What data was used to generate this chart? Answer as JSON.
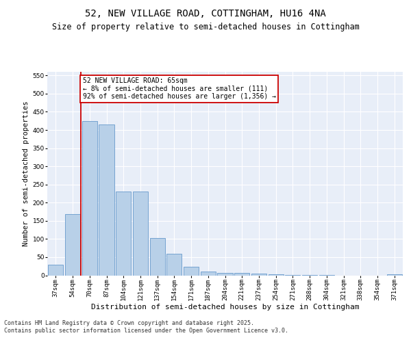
{
  "title_line1": "52, NEW VILLAGE ROAD, COTTINGHAM, HU16 4NA",
  "title_line2": "Size of property relative to semi-detached houses in Cottingham",
  "xlabel": "Distribution of semi-detached houses by size in Cottingham",
  "ylabel": "Number of semi-detached properties",
  "categories": [
    "37sqm",
    "54sqm",
    "70sqm",
    "87sqm",
    "104sqm",
    "121sqm",
    "137sqm",
    "154sqm",
    "171sqm",
    "187sqm",
    "204sqm",
    "221sqm",
    "237sqm",
    "254sqm",
    "271sqm",
    "288sqm",
    "304sqm",
    "321sqm",
    "338sqm",
    "354sqm",
    "371sqm"
  ],
  "values": [
    30,
    168,
    425,
    416,
    230,
    230,
    103,
    60,
    23,
    10,
    7,
    7,
    4,
    2,
    1,
    1,
    1,
    0,
    0,
    0,
    3
  ],
  "bar_color": "#b8d0e8",
  "bar_edge_color": "#6699cc",
  "highlight_line_color": "#cc0000",
  "annotation_text": "52 NEW VILLAGE ROAD: 65sqm\n← 8% of semi-detached houses are smaller (111)\n92% of semi-detached houses are larger (1,356) →",
  "annotation_box_color": "#ffffff",
  "annotation_box_edge_color": "#cc0000",
  "ylim": [
    0,
    560
  ],
  "yticks": [
    0,
    50,
    100,
    150,
    200,
    250,
    300,
    350,
    400,
    450,
    500,
    550
  ],
  "background_color": "#e8eef8",
  "grid_color": "#ffffff",
  "footer_text": "Contains HM Land Registry data © Crown copyright and database right 2025.\nContains public sector information licensed under the Open Government Licence v3.0.",
  "title_fontsize": 10,
  "subtitle_fontsize": 8.5,
  "axis_label_fontsize": 7.5,
  "tick_fontsize": 6.5,
  "annotation_fontsize": 7,
  "footer_fontsize": 6
}
